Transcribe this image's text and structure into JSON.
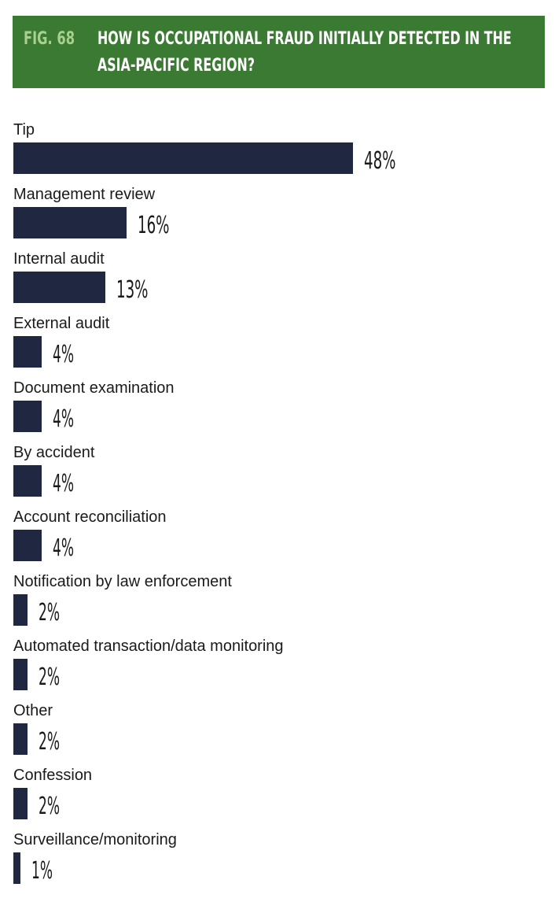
{
  "figure": {
    "number": "FIG. 68",
    "title_line1": "HOW IS OCCUPATIONAL FRAUD INITIALLY DETECTED IN THE",
    "title_line2": "ASIA-PACIFIC REGION?"
  },
  "colors": {
    "banner": "#3a7a33",
    "fig_number": "#a9d18e",
    "bar": "#1f2840",
    "text": "#1a1a1a"
  },
  "chart_data": {
    "type": "bar",
    "orientation": "horizontal",
    "categories": [
      "Tip",
      "Management review",
      "Internal audit",
      "External audit",
      "Document examination",
      "By accident",
      "Account reconciliation",
      "Notification by law enforcement",
      "Automated transaction/data monitoring",
      "Other",
      "Confession",
      "Surveillance/monitoring"
    ],
    "values": [
      48,
      16,
      13,
      4,
      4,
      4,
      4,
      2,
      2,
      2,
      2,
      1
    ],
    "value_labels": [
      "48%",
      "16%",
      "13%",
      "4%",
      "4%",
      "4%",
      "4%",
      "2%",
      "2%",
      "2%",
      "2%",
      "1%"
    ],
    "unit": "%",
    "grid": false
  }
}
